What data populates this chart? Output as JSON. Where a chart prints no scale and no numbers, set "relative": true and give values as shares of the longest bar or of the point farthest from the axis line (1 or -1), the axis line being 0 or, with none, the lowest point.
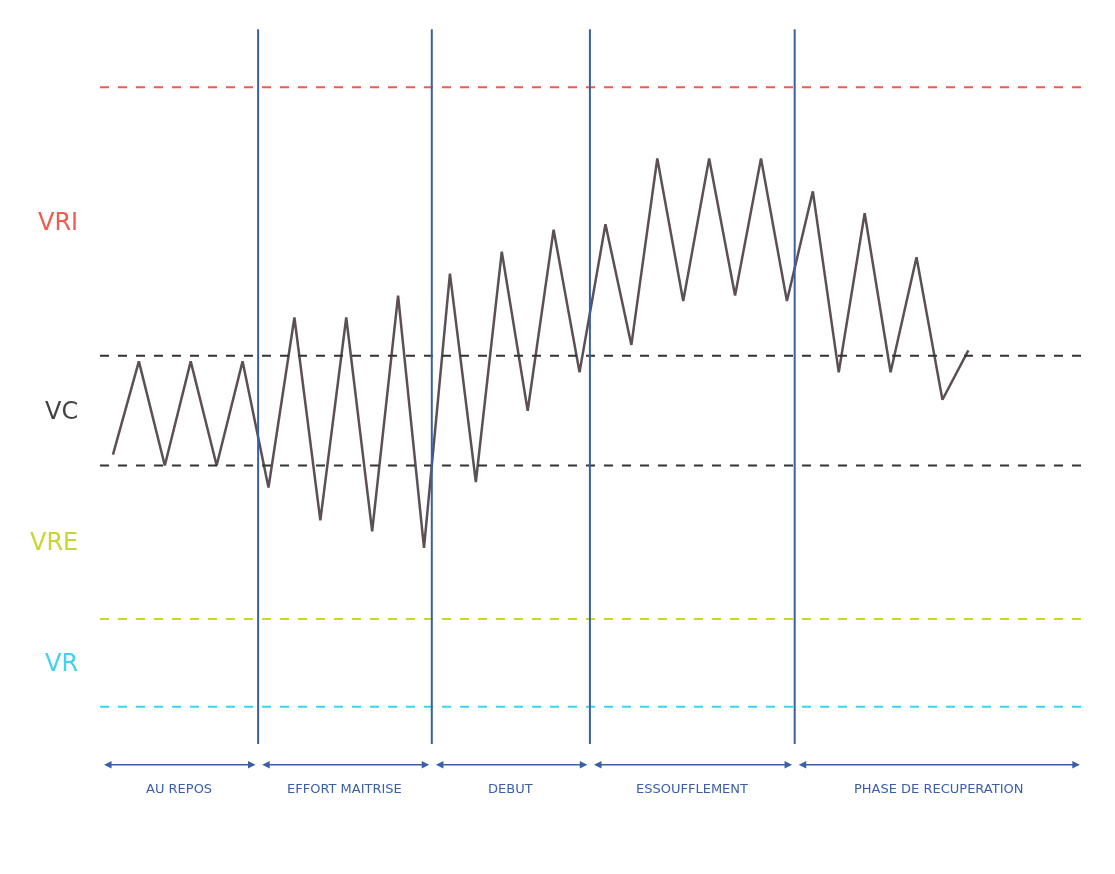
{
  "chart_data": {
    "type": "line",
    "relative": true,
    "tick_labels": false,
    "categories": [
      null,
      null,
      null,
      null,
      null,
      null,
      null,
      null,
      null,
      null,
      null,
      null,
      null,
      null,
      null,
      null,
      null,
      null,
      null,
      null,
      null,
      null,
      null,
      null,
      null,
      null,
      null,
      null,
      null,
      null,
      null,
      null,
      null,
      null,
      null,
      null,
      null,
      null
    ],
    "series": [
      {
        "color": "#5a5055",
        "marker": "none",
        "line_style": "solid",
        "values": [
          0.46,
          0.63,
          0.44,
          0.63,
          0.44,
          0.63,
          0.4,
          0.71,
          0.34,
          0.71,
          0.32,
          0.75,
          0.29,
          0.79,
          0.41,
          0.83,
          0.54,
          0.87,
          0.61,
          0.88,
          0.66,
          1.0,
          0.74,
          1.0,
          0.75,
          1.0,
          0.74,
          0.94,
          0.61,
          0.9,
          0.61,
          0.82,
          0.56,
          0.65,
          null,
          null,
          null,
          null
        ]
      }
    ],
    "ref_lines": [
      {
        "axis": "y",
        "value": 1.13,
        "color": "#f05a4f",
        "line_style": "dashed"
      },
      {
        "axis": "y",
        "value": 0.64,
        "color": "#333333",
        "line_style": "dashed"
      },
      {
        "axis": "y",
        "value": 0.44,
        "color": "#333333",
        "line_style": "dashed"
      },
      {
        "axis": "y",
        "value": 0.16,
        "color": "#c8d630",
        "line_style": "dashed"
      },
      {
        "axis": "y",
        "value": 0,
        "color": "#3fd3f0",
        "line_style": "dashed"
      }
    ],
    "annotations": [
      "VRI",
      "VC",
      "VRE",
      "VR",
      "AU REPOS",
      "EFFORT MAITRISE",
      "DEBUT",
      "ESSOUFFLEMENT",
      "PHASE DE RECUPERATION"
    ]
  }
}
